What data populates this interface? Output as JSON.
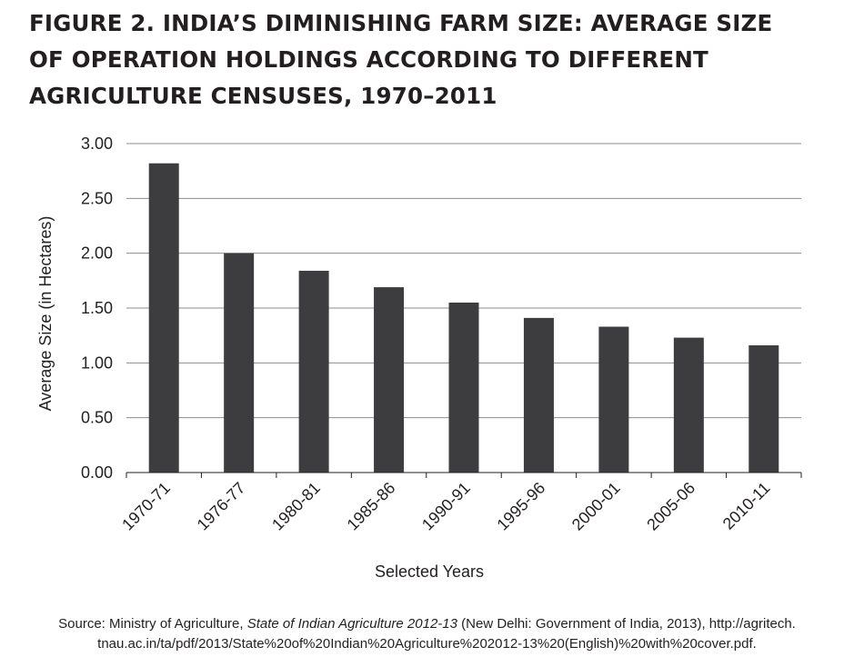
{
  "title_lines": [
    "FIGURE 2. INDIA’S DIMINISHING FARM SIZE: AVERAGE SIZE",
    "OF OPERATION HOLDINGS ACCORDING TO DIFFERENT",
    "AGRICULTURE CENSUSES, 1970–2011"
  ],
  "chart_data": {
    "type": "bar",
    "title": "FIGURE 2. INDIA’S DIMINISHING FARM SIZE: AVERAGE SIZE OF OPERATION HOLDINGS ACCORDING TO DIFFERENT AGRICULTURE CENSUSES, 1970–2011",
    "xlabel": "Selected Years",
    "ylabel": "Average Size (in Hectares)",
    "categories": [
      "1970-71",
      "1976-77",
      "1980-81",
      "1985-86",
      "1990-91",
      "1995-96",
      "2000-01",
      "2005-06",
      "2010-11"
    ],
    "values": [
      2.82,
      2.0,
      1.84,
      1.69,
      1.55,
      1.41,
      1.33,
      1.23,
      1.16
    ],
    "ylim": [
      0,
      3
    ],
    "yticks": [
      "0.00",
      "0.50",
      "1.00",
      "1.50",
      "2.00",
      "2.50",
      "3.00"
    ],
    "grid": true,
    "bar_color": "#3d3d3f",
    "grid_color": "#8c8c8c"
  },
  "source": {
    "prefix": "Source: Ministry of Agriculture, ",
    "italic": "State of Indian Agriculture 2012-13",
    "suffix": " (New Delhi: Government of India, 2013), http://agritech.",
    "line2": "tnau.ac.in/ta/pdf/2013/State%20of%20Indian%20Agriculture%202012-13%20(English)%20with%20cover.pdf."
  }
}
